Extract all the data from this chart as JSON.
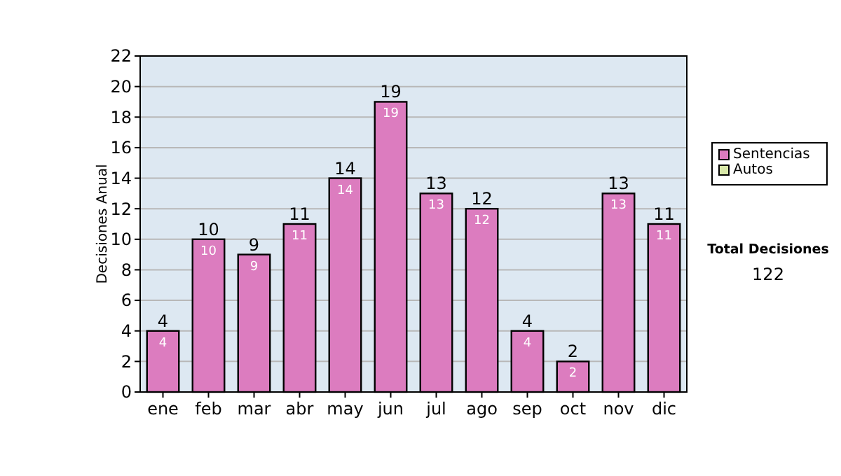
{
  "chart_data": {
    "type": "bar",
    "stacked": true,
    "ylabel": "Decisiones Anual",
    "categories": [
      "ene",
      "feb",
      "mar",
      "abr",
      "may",
      "jun",
      "jul",
      "ago",
      "sep",
      "oct",
      "nov",
      "dic"
    ],
    "series": [
      {
        "name": "Sentencias",
        "color": "#dc7cbf",
        "values": [
          4,
          10,
          9,
          11,
          14,
          19,
          13,
          12,
          4,
          2,
          13,
          11
        ],
        "value_labels": [
          "4",
          "10",
          "9",
          "11",
          "14",
          "19",
          "13",
          "12",
          "4",
          "2",
          "13",
          "11"
        ]
      },
      {
        "name": "Autos",
        "color": "#d8e8a8",
        "values": [
          0,
          0,
          0,
          0,
          0,
          0,
          0,
          0,
          0,
          0,
          0,
          0
        ]
      }
    ],
    "totals": [
      "4",
      "10",
      "9",
      "11",
      "14",
      "19",
      "13",
      "12",
      "4",
      "2",
      "13",
      "11"
    ],
    "ylim": [
      0,
      22
    ],
    "yticks": [
      0,
      2,
      4,
      6,
      8,
      10,
      12,
      14,
      16,
      18,
      20,
      22
    ],
    "grid": "y",
    "legend": "right",
    "annotations": [
      "Total Decisiones",
      "122"
    ]
  }
}
